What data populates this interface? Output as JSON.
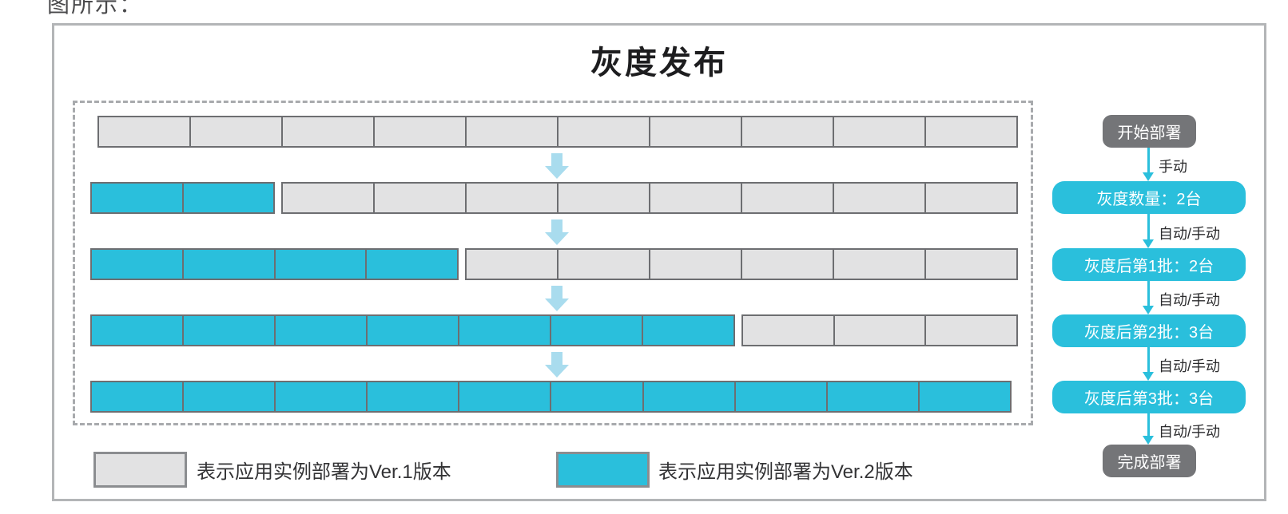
{
  "intro_text": "图所示：",
  "diagram": {
    "title": "灰度发布",
    "deployment_rows": [
      {
        "ver2_instances": 0,
        "ver1_instances": 10
      },
      {
        "ver2_instances": 2,
        "ver1_instances": 8
      },
      {
        "ver2_instances": 4,
        "ver1_instances": 6
      },
      {
        "ver2_instances": 7,
        "ver1_instances": 3
      },
      {
        "ver2_instances": 10,
        "ver1_instances": 0
      }
    ],
    "legend": {
      "ver1_label": "表示应用实例部署为Ver.1版本",
      "ver2_label": "表示应用实例部署为Ver.2版本"
    },
    "flow": {
      "nodes": [
        {
          "type": "terminal",
          "label": "开始部署"
        },
        {
          "type": "step",
          "label": "灰度数量：2台"
        },
        {
          "type": "step",
          "label": "灰度后第1批：2台"
        },
        {
          "type": "step",
          "label": "灰度后第2批：3台"
        },
        {
          "type": "step",
          "label": "灰度后第3批：3台"
        },
        {
          "type": "terminal",
          "label": "完成部署"
        }
      ],
      "edge_labels": [
        "手动",
        "自动/手动",
        "自动/手动",
        "自动/手动",
        "自动/手动"
      ]
    },
    "colors": {
      "ver2_fill": "#2abfdc",
      "ver1_fill": "#e2e2e3",
      "cell_border": "#6d6e71",
      "big_arrow_fill": "#a9dcee",
      "terminal_fill": "#747578",
      "edge_line": "#2abfdc",
      "frame_border": "#b3b5b7",
      "boundary_dash": "#a8aaad"
    }
  }
}
